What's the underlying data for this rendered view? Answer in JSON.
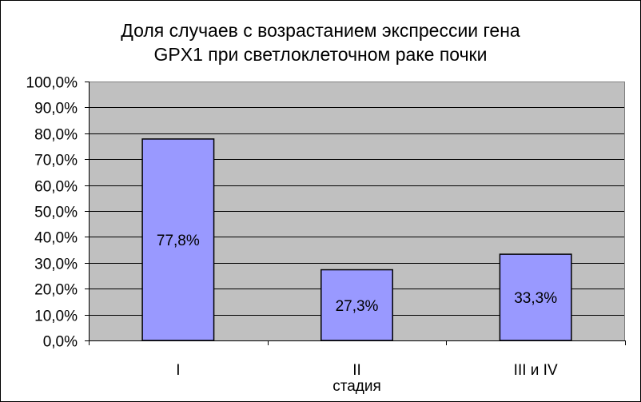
{
  "chart_data": {
    "type": "bar",
    "title_lines": [
      "Доля случаев с возрастанием экспрессии гена",
      "GPX1 при светлоклеточном раке почки"
    ],
    "categories": [
      "I",
      "II",
      "III и IV"
    ],
    "values": [
      77.8,
      27.3,
      33.3
    ],
    "data_labels": [
      "77,8%",
      "27,3%",
      "33,3%"
    ],
    "xlabel": "стадия",
    "ylabel": "",
    "ylim": [
      0,
      100
    ],
    "yticks": [
      0,
      10,
      20,
      30,
      40,
      50,
      60,
      70,
      80,
      90,
      100
    ],
    "ytick_labels": [
      "0,0%",
      "10,0%",
      "20,0%",
      "30,0%",
      "40,0%",
      "50,0%",
      "60,0%",
      "70,0%",
      "80,0%",
      "90,0%",
      "100,0%"
    ],
    "grid": true,
    "legend": "none",
    "colors": {
      "bar_fill": "#9999FF",
      "plot_background": "#C0C0C0",
      "gridline": "#000000"
    }
  }
}
